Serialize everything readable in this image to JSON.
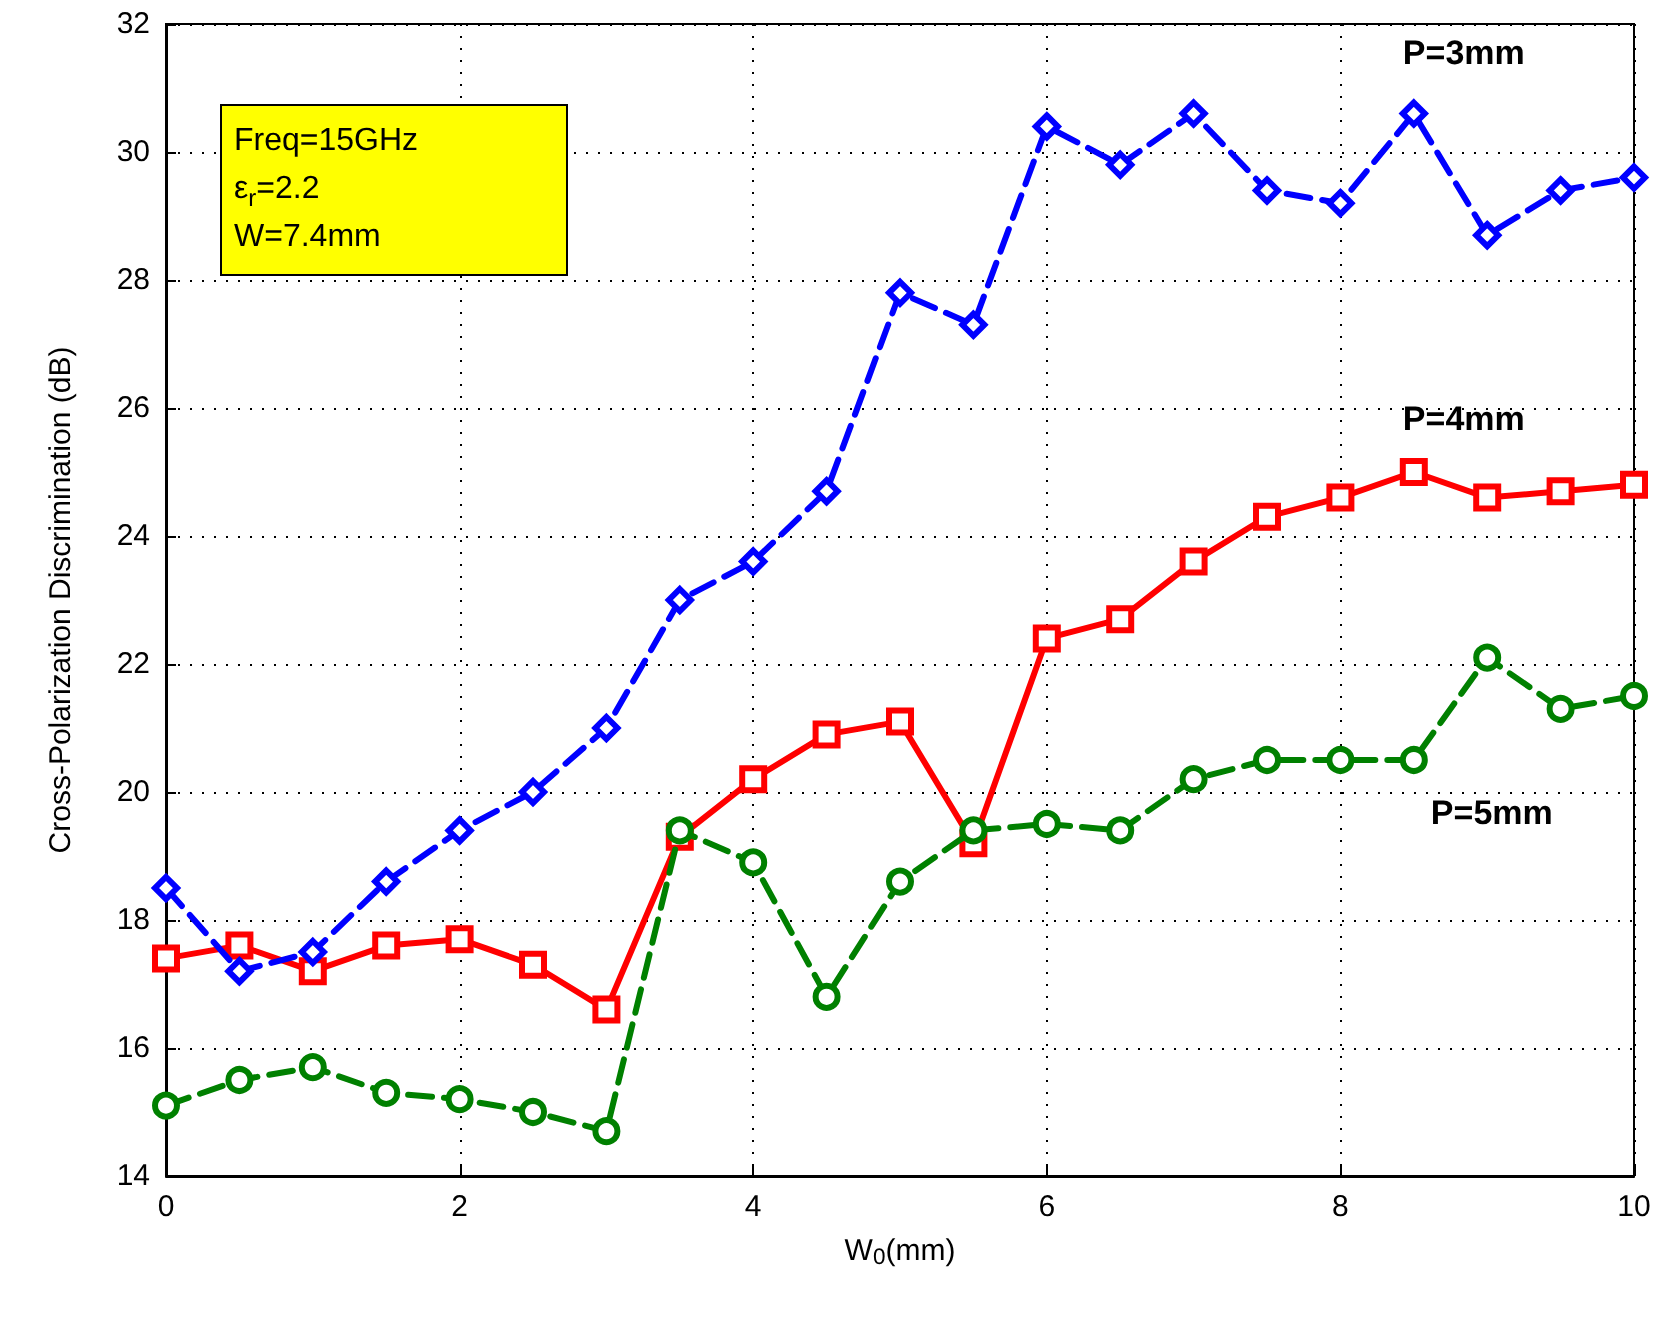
{
  "chart_data": {
    "type": "line",
    "xlabel": "W$_{0}$(mm)",
    "ylabel": "Cross-Polarization Discrimination (dB)",
    "x": [
      0,
      0.5,
      1,
      1.5,
      2,
      2.5,
      3,
      3.5,
      4,
      4.5,
      5,
      5.5,
      6,
      6.5,
      7,
      7.5,
      8,
      8.5,
      9,
      9.5,
      10
    ],
    "series": [
      {
        "name": "P=3mm",
        "color": "#0000ff",
        "marker": "diamond",
        "line_style": "dashed",
        "values": [
          18.5,
          17.2,
          17.5,
          18.6,
          19.4,
          20.0,
          21.0,
          23.0,
          23.6,
          24.7,
          27.8,
          27.3,
          30.4,
          29.8,
          30.6,
          29.4,
          29.2,
          30.6,
          28.7,
          29.4,
          29.6
        ]
      },
      {
        "name": "P=4mm",
        "color": "#ff0000",
        "marker": "square",
        "line_style": "solid",
        "values": [
          17.4,
          17.6,
          17.2,
          17.6,
          17.7,
          17.3,
          16.6,
          19.3,
          20.2,
          20.9,
          21.1,
          19.2,
          22.4,
          22.7,
          23.6,
          24.3,
          24.6,
          25.0,
          24.6,
          24.7,
          24.8
        ]
      },
      {
        "name": "P=5mm",
        "color": "#008000",
        "marker": "circle",
        "line_style": "dashed",
        "values": [
          15.1,
          15.5,
          15.7,
          15.3,
          15.2,
          15.0,
          14.7,
          19.4,
          18.9,
          16.8,
          18.6,
          19.4,
          19.5,
          19.4,
          20.2,
          20.5,
          20.5,
          20.5,
          22.1,
          21.3,
          21.5
        ]
      }
    ],
    "xlim": [
      0,
      10
    ],
    "xticks": [
      0,
      2,
      4,
      6,
      8,
      10
    ],
    "ylim": [
      14,
      32
    ],
    "yticks": [
      14,
      16,
      18,
      20,
      22,
      24,
      26,
      28,
      30,
      32
    ],
    "grid": true,
    "legend": false,
    "annotations": [
      "Freq=15GHz",
      "ε$_{r}$=2.2",
      "W=7.4mm"
    ]
  }
}
